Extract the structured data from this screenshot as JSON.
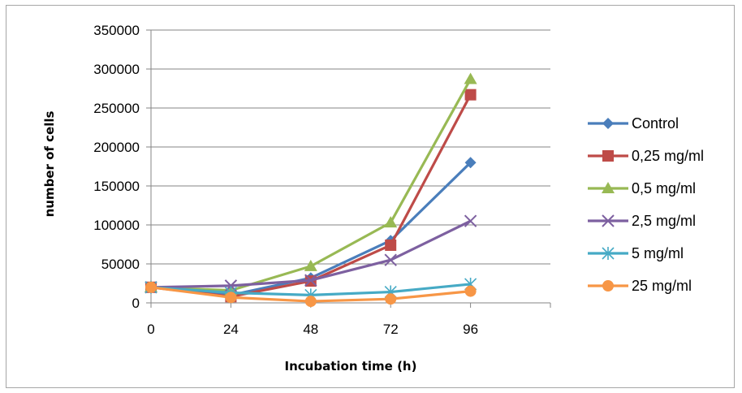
{
  "chart_data": {
    "type": "line",
    "title": "",
    "xlabel": "Incubation time (h)",
    "ylabel": "number of cells",
    "x": [
      0,
      24,
      48,
      72,
      96
    ],
    "xlim": [
      0,
      120
    ],
    "ylim": [
      0,
      350000
    ],
    "yticks": [
      "0",
      "50000",
      "100000",
      "150000",
      "200000",
      "250000",
      "300000",
      "350000"
    ],
    "xticks": [
      "0",
      "24",
      "48",
      "72",
      "96"
    ],
    "grid": "horizontal",
    "legend_position": "right",
    "series": [
      {
        "name": "Control",
        "color": "#4a7ebb",
        "marker": "diamond",
        "values": [
          20000,
          10000,
          32000,
          80000,
          180000
        ]
      },
      {
        "name": "0,25 mg/ml",
        "color": "#be4b48",
        "marker": "square",
        "values": [
          20000,
          8000,
          28000,
          74000,
          267000
        ]
      },
      {
        "name": "0,5 mg/ml",
        "color": "#98b954",
        "marker": "triangle",
        "values": [
          20000,
          16000,
          47000,
          103000,
          287000
        ]
      },
      {
        "name": "2,5 mg/ml",
        "color": "#7d60a0",
        "marker": "x",
        "values": [
          20000,
          22000,
          29000,
          55000,
          105000
        ]
      },
      {
        "name": "5 mg/ml",
        "color": "#46aac5",
        "marker": "star",
        "values": [
          20000,
          13000,
          10000,
          14000,
          24000
        ]
      },
      {
        "name": "25 mg/ml",
        "color": "#f79646",
        "marker": "circle",
        "values": [
          20000,
          7000,
          2000,
          5000,
          15000
        ]
      }
    ]
  }
}
